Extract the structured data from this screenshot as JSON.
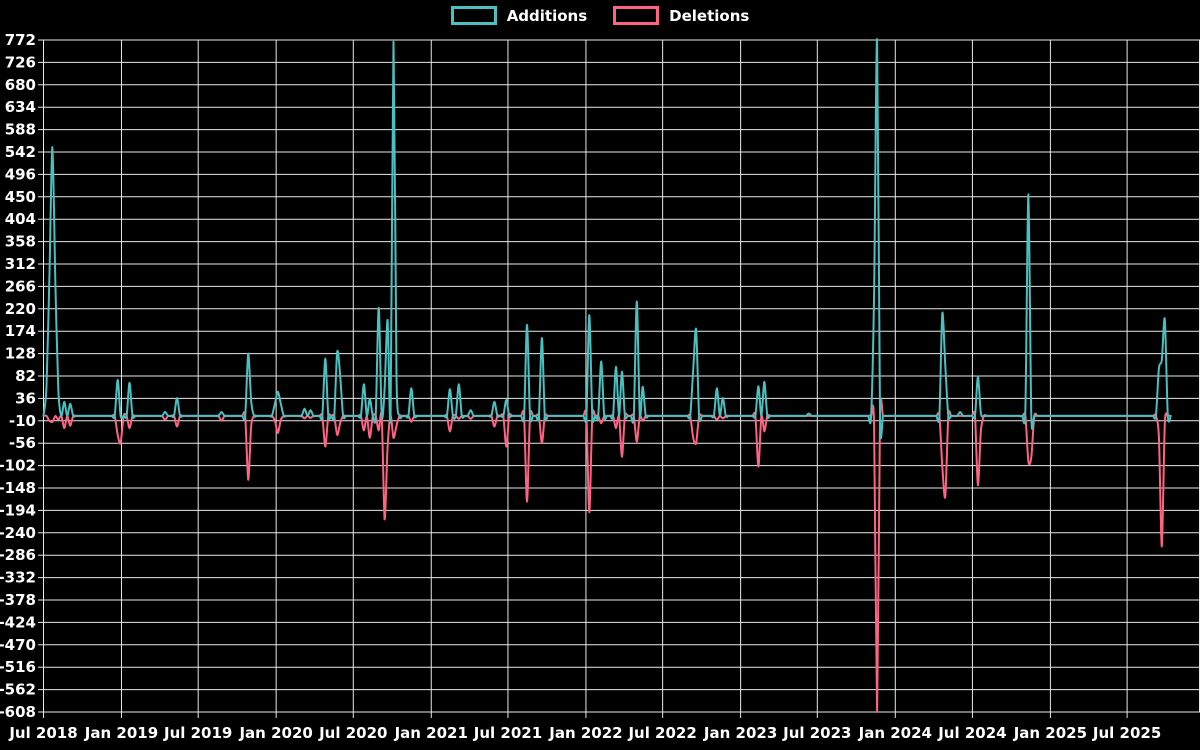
{
  "legend": {
    "additions_label": "Additions",
    "deletions_label": "Deletions"
  },
  "colors": {
    "background": "#000000",
    "grid": "#e8e8e8",
    "text": "#ffffff",
    "additions": "#4bc0c0",
    "deletions": "#ff6384"
  },
  "chart_data": {
    "type": "line",
    "title": "",
    "xlabel": "",
    "ylabel": "",
    "legend_position": "top",
    "grid": true,
    "y_axis": {
      "min": -608,
      "max": 772,
      "tick_step": 46,
      "ticks": [
        772,
        726,
        680,
        634,
        588,
        542,
        496,
        450,
        404,
        358,
        312,
        266,
        220,
        174,
        128,
        82,
        36,
        -10,
        -56,
        -102,
        -148,
        -194,
        -240,
        -286,
        -332,
        -378,
        -424,
        -470,
        -516,
        -562,
        -608
      ]
    },
    "x_axis": {
      "tick_labels": [
        "Jul 2018",
        "Jan 2019",
        "Jul 2019",
        "Jan 2020",
        "Jul 2020",
        "Jan 2021",
        "Jul 2021",
        "Jan 2022",
        "Jul 2022",
        "Jan 2023",
        "Jul 2023",
        "Jan 2024",
        "Jul 2024",
        "Jan 2025",
        "Jul 2025"
      ],
      "tick_dates": [
        "2018-07-01",
        "2019-01-01",
        "2019-07-01",
        "2020-01-01",
        "2020-07-01",
        "2021-01-01",
        "2021-07-01",
        "2022-01-01",
        "2022-07-01",
        "2023-01-01",
        "2023-07-01",
        "2024-01-01",
        "2024-07-01",
        "2025-01-01",
        "2025-07-01"
      ]
    },
    "series": [
      {
        "name": "Additions",
        "color_key": "additions"
      },
      {
        "name": "Deletions",
        "color_key": "deletions"
      }
    ],
    "series_start": "2018-07-01",
    "series_end": "2025-10-12",
    "points_format": [
      "week_date",
      "additions",
      "deletions"
    ],
    "points": [
      [
        "2018-07-08",
        60,
        0
      ],
      [
        "2018-07-15",
        285,
        -10
      ],
      [
        "2018-07-22",
        552,
        -12
      ],
      [
        "2018-07-29",
        270,
        0
      ],
      [
        "2018-08-05",
        55,
        -8
      ],
      [
        "2018-08-19",
        29,
        -25
      ],
      [
        "2018-09-02",
        25,
        -20
      ],
      [
        "2018-12-23",
        74,
        -39
      ],
      [
        "2018-12-30",
        0,
        -56
      ],
      [
        "2019-01-20",
        68,
        -25
      ],
      [
        "2019-04-14",
        8,
        -8
      ],
      [
        "2019-05-12",
        37,
        -22
      ],
      [
        "2019-08-25",
        8,
        -10
      ],
      [
        "2019-10-27",
        128,
        -131
      ],
      [
        "2019-11-03",
        30,
        -20
      ],
      [
        "2019-12-29",
        25,
        -10
      ],
      [
        "2020-01-05",
        50,
        -35
      ],
      [
        "2020-01-12",
        25,
        -8
      ],
      [
        "2020-03-08",
        15,
        -5
      ],
      [
        "2020-03-22",
        12,
        -4
      ],
      [
        "2020-04-26",
        118,
        -63
      ],
      [
        "2020-05-24",
        132,
        -39
      ],
      [
        "2020-05-31",
        84,
        -15
      ],
      [
        "2020-07-26",
        65,
        -30
      ],
      [
        "2020-08-09",
        35,
        -45
      ],
      [
        "2020-08-30",
        222,
        -30
      ],
      [
        "2020-09-13",
        55,
        -212
      ],
      [
        "2020-09-20",
        197,
        -63
      ],
      [
        "2020-10-04",
        768,
        -45
      ],
      [
        "2020-10-11",
        82,
        -20
      ],
      [
        "2020-11-15",
        57,
        -12
      ],
      [
        "2021-02-14",
        55,
        -32
      ],
      [
        "2021-03-07",
        65,
        -6
      ],
      [
        "2021-04-04",
        12,
        -6
      ],
      [
        "2021-05-30",
        29,
        -22
      ],
      [
        "2021-06-27",
        33,
        -63
      ],
      [
        "2021-08-15",
        187,
        -176
      ],
      [
        "2021-09-19",
        160,
        -56
      ],
      [
        "2022-01-09",
        207,
        -198
      ],
      [
        "2022-02-06",
        112,
        -15
      ],
      [
        "2022-03-13",
        101,
        -25
      ],
      [
        "2022-03-27",
        91,
        -84
      ],
      [
        "2022-05-01",
        235,
        -53
      ],
      [
        "2022-05-15",
        60,
        -10
      ],
      [
        "2022-09-11",
        94,
        -45
      ],
      [
        "2022-09-18",
        178,
        -56
      ],
      [
        "2022-11-06",
        57,
        -8
      ],
      [
        "2022-11-20",
        37,
        -5
      ],
      [
        "2023-02-12",
        61,
        -104
      ],
      [
        "2023-02-26",
        70,
        -32
      ],
      [
        "2023-06-11",
        5,
        0
      ],
      [
        "2023-11-12",
        253,
        -20
      ],
      [
        "2023-11-19",
        772,
        -608
      ],
      [
        "2024-04-21",
        211,
        -104
      ],
      [
        "2024-04-28",
        103,
        -166
      ],
      [
        "2024-06-02",
        8,
        0
      ],
      [
        "2024-07-14",
        81,
        -142
      ],
      [
        "2024-07-21",
        5,
        -30
      ],
      [
        "2024-11-03",
        16,
        0
      ],
      [
        "2024-11-10",
        455,
        -94
      ],
      [
        "2024-11-17",
        0,
        -85
      ],
      [
        "2025-09-14",
        98,
        -43
      ],
      [
        "2025-09-21",
        115,
        -268
      ],
      [
        "2025-09-28",
        199,
        -15
      ]
    ]
  }
}
